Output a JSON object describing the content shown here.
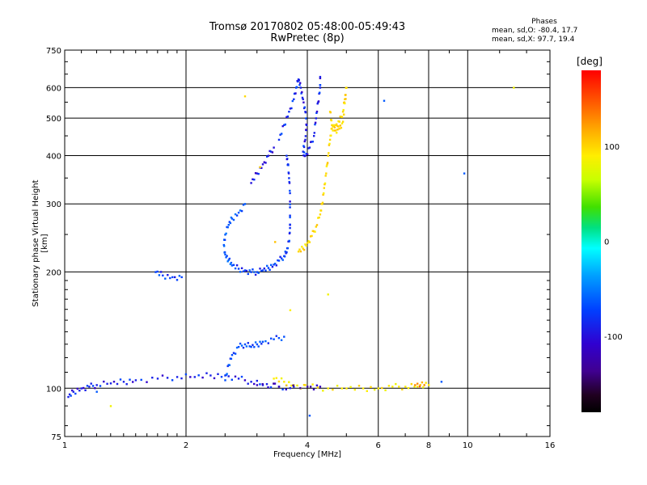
{
  "title_line1": "Tromsø 20170802 05:48:00-05:49:43",
  "title_line2": "RwPretec (8p)",
  "phases": {
    "title": "Phases",
    "o_line": "mean, sd,O: -80.4, 17.7",
    "x_line": "mean, sd,X:  97.7, 19.4"
  },
  "colorbar": {
    "unit": "[deg]",
    "ticks": [
      {
        "value": 100,
        "label": "100"
      },
      {
        "value": 0,
        "label": "0"
      },
      {
        "value": -100,
        "label": "-100"
      }
    ],
    "range": [
      -180,
      180
    ]
  },
  "chart_data": {
    "type": "scatter",
    "xscale": "log",
    "yscale": "log",
    "xlabel": "Frequency [MHz]",
    "ylabel": "Stationary phase Virtual Height [km]",
    "xlim": [
      1,
      16
    ],
    "ylim": [
      75,
      750
    ],
    "xticks": [
      1,
      2,
      4,
      6,
      8,
      10,
      16
    ],
    "xtick_labels": [
      "1",
      "2",
      "4",
      "6",
      "8",
      "10",
      "16"
    ],
    "yticks": [
      75,
      100,
      200,
      300,
      400,
      500,
      600,
      750
    ],
    "ytick_labels": [
      "75",
      "100",
      "200",
      "300",
      "400",
      "500",
      "600",
      "750"
    ],
    "grid": true,
    "color_by": "phase",
    "series": [
      {
        "traces": [
          {
            "phase": -110,
            "points": [
              [
                1.02,
                95
              ],
              [
                1.05,
                98
              ],
              [
                1.1,
                100
              ],
              [
                1.15,
                101
              ],
              [
                1.2,
                102
              ],
              [
                1.3,
                103
              ],
              [
                1.4,
                104
              ],
              [
                1.5,
                105
              ],
              [
                1.7,
                106
              ],
              [
                1.9,
                107
              ],
              [
                2.1,
                107
              ],
              [
                2.3,
                108
              ],
              [
                2.5,
                108
              ],
              [
                2.7,
                106
              ],
              [
                2.9,
                104
              ],
              [
                3.1,
                102
              ],
              [
                3.4,
                101
              ],
              [
                3.7,
                101
              ]
            ]
          },
          {
            "phase": -100,
            "points": [
              [
                1.68,
                200
              ],
              [
                1.75,
                196
              ],
              [
                1.85,
                194
              ],
              [
                1.95,
                194
              ]
            ]
          },
          {
            "phase": -95,
            "points": [
              [
                2.5,
                105
              ],
              [
                2.55,
                115
              ],
              [
                2.6,
                122
              ],
              [
                2.7,
                128
              ],
              [
                2.8,
                130
              ],
              [
                2.9,
                128
              ],
              [
                3.0,
                130
              ],
              [
                3.1,
                132
              ],
              [
                3.3,
                134
              ],
              [
                3.5,
                136
              ]
            ]
          },
          {
            "phase": -100,
            "points": [
              [
                2.6,
                208
              ],
              [
                2.7,
                204
              ],
              [
                2.8,
                202
              ],
              [
                2.9,
                200
              ],
              [
                3.0,
                200
              ],
              [
                3.1,
                202
              ],
              [
                3.2,
                205
              ],
              [
                3.3,
                209
              ],
              [
                3.4,
                214
              ],
              [
                3.5,
                220
              ],
              [
                3.55,
                225
              ]
            ]
          },
          {
            "phase": -90,
            "points": [
              [
                2.6,
                208
              ],
              [
                2.55,
                215
              ],
              [
                2.5,
                222
              ],
              [
                2.48,
                235
              ],
              [
                2.5,
                250
              ],
              [
                2.55,
                265
              ],
              [
                2.6,
                275
              ],
              [
                2.7,
                285
              ],
              [
                2.8,
                300
              ]
            ]
          },
          {
            "phase": -105,
            "points": [
              [
                3.55,
                225
              ],
              [
                3.6,
                240
              ],
              [
                3.62,
                260
              ],
              [
                3.62,
                280
              ],
              [
                3.62,
                320
              ],
              [
                3.6,
                350
              ],
              [
                3.58,
                380
              ],
              [
                3.55,
                400
              ]
            ]
          },
          {
            "phase": -115,
            "points": [
              [
                2.9,
                340
              ],
              [
                3.0,
                360
              ],
              [
                3.1,
                380
              ],
              [
                3.2,
                400
              ],
              [
                3.3,
                420
              ]
            ]
          },
          {
            "phase": -105,
            "points": [
              [
                3.4,
                440
              ],
              [
                3.5,
                480
              ],
              [
                3.6,
                520
              ],
              [
                3.7,
                560
              ],
              [
                3.75,
                600
              ],
              [
                3.8,
                630
              ]
            ]
          },
          {
            "phase": -110,
            "points": [
              [
                3.8,
                630
              ],
              [
                3.85,
                600
              ],
              [
                3.9,
                560
              ],
              [
                3.95,
                520
              ],
              [
                3.98,
                480
              ],
              [
                3.95,
                440
              ],
              [
                3.9,
                410
              ],
              [
                3.95,
                400
              ],
              [
                4.05,
                420
              ],
              [
                4.15,
                450
              ],
              [
                4.2,
                500
              ],
              [
                4.25,
                550
              ],
              [
                4.3,
                600
              ],
              [
                4.3,
                640
              ]
            ]
          },
          {
            "phase": 110,
            "points": [
              [
                3.8,
                226
              ],
              [
                3.9,
                230
              ],
              [
                4.0,
                238
              ],
              [
                4.1,
                248
              ],
              [
                4.2,
                262
              ],
              [
                4.3,
                282
              ],
              [
                4.35,
                300
              ],
              [
                4.4,
                330
              ],
              [
                4.45,
                360
              ],
              [
                4.5,
                400
              ],
              [
                4.55,
                440
              ],
              [
                4.6,
                470
              ],
              [
                4.7,
                480
              ],
              [
                4.8,
                490
              ],
              [
                4.9,
                520
              ],
              [
                4.95,
                560
              ],
              [
                5.0,
                600
              ],
              [
                4.9,
                490
              ],
              [
                4.8,
                470
              ],
              [
                4.7,
                465
              ],
              [
                4.6,
                480
              ],
              [
                4.55,
                520
              ]
            ]
          },
          {
            "phase": 100,
            "points": [
              [
                3.3,
                106
              ],
              [
                3.5,
                104
              ],
              [
                3.7,
                102
              ],
              [
                4.0,
                101
              ],
              [
                4.5,
                100
              ],
              [
                5.0,
                100
              ],
              [
                5.5,
                100
              ],
              [
                6.0,
                100
              ],
              [
                6.5,
                101
              ],
              [
                7.0,
                101
              ],
              [
                7.5,
                101
              ],
              [
                8.0,
                102
              ]
            ]
          },
          {
            "phase": 140,
            "points": [
              [
                7.4,
                102
              ],
              [
                7.8,
                102
              ]
            ]
          },
          {
            "phase": -130,
            "points": [
              [
                3.0,
                102
              ],
              [
                3.4,
                101
              ],
              [
                4.0,
                101
              ],
              [
                4.3,
                101
              ]
            ]
          },
          {
            "phase": 110,
            "points": [
              [
                2.8,
                570
              ],
              [
                3.95,
                102
              ]
            ]
          },
          {
            "phase": -90,
            "points": [
              [
                6.2,
                555
              ],
              [
                9.8,
                360
              ],
              [
                8.6,
                104
              ],
              [
                4.05,
                85
              ],
              [
                1.2,
                98
              ]
            ]
          },
          {
            "phase": 90,
            "points": [
              [
                13.0,
                600
              ],
              [
                4.5,
                175
              ],
              [
                1.3,
                90
              ]
            ]
          }
        ]
      }
    ]
  },
  "axis_titles": {
    "x": "Frequency [MHz]",
    "y": "Stationary phase Virtual Height [km]"
  }
}
